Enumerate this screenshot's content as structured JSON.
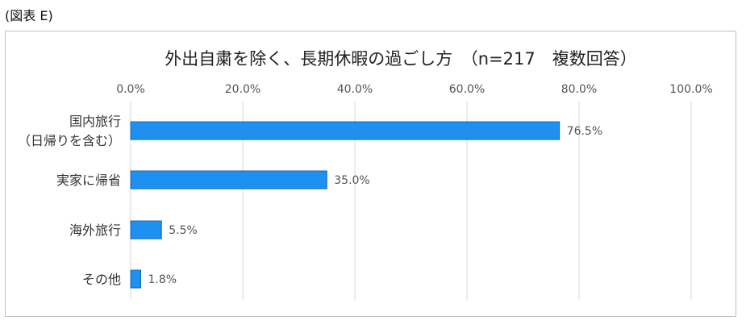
{
  "caption": "(図表 E)",
  "chart_data": {
    "type": "bar",
    "orientation": "horizontal",
    "title": "外出自粛を除く、長期休暇の過ごし方　（n=217　複数回答）",
    "categories": [
      [
        "国内旅行",
        "（日帰りを含む）"
      ],
      [
        "実家に帰省"
      ],
      [
        "海外旅行"
      ],
      [
        "その他"
      ]
    ],
    "values": [
      76.5,
      35.0,
      5.5,
      1.8
    ],
    "data_labels": [
      "76.5%",
      "35.0%",
      "5.5%",
      "1.8%"
    ],
    "xlim": [
      0,
      100
    ],
    "xticks": [
      "0.0%",
      "20.0%",
      "40.0%",
      "60.0%",
      "80.0%",
      "100.0%"
    ],
    "xaxis_position": "top",
    "grid": true,
    "legend": "none",
    "bar_color": "#1E90F0",
    "bar_edge_color": "#1565C0"
  }
}
